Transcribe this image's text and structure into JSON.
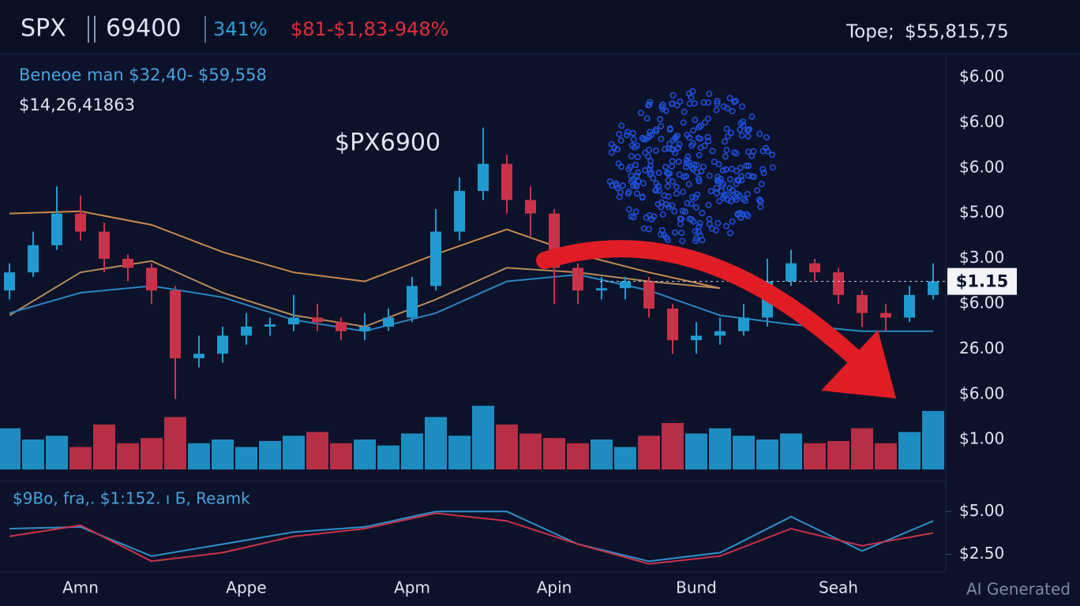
{
  "header": {
    "symbol": "SPX",
    "price": "69400",
    "change": "341%",
    "range": "$81-$1,83-948%",
    "top_label": "Tope;",
    "top_value": "$55,815,75"
  },
  "info": {
    "line1": "Beneoe man $32,40- $59,558",
    "line2": "$14,26,41863"
  },
  "y_axis_labels": [
    "$6.00",
    "$6.00",
    "$6.00",
    "$5.00",
    "$3.00",
    "$6.00",
    "26.00",
    "$6.00",
    "$1.00"
  ],
  "chart_data": {
    "type": "candlestick",
    "annotation": "$PX6900",
    "categories": [
      null,
      null,
      null,
      "Amn",
      null,
      null,
      null,
      null,
      null,
      null,
      "Appe",
      null,
      null,
      null,
      null,
      null,
      null,
      "Apm",
      null,
      null,
      null,
      null,
      null,
      "Apin",
      null,
      null,
      null,
      null,
      null,
      "Bund",
      null,
      null,
      null,
      null,
      null,
      "Seah",
      null,
      null,
      null,
      null
    ],
    "open": [
      3.3,
      3.7,
      4.3,
      5.0,
      4.6,
      4.0,
      3.8,
      3.3,
      1.8,
      1.9,
      2.3,
      2.5,
      2.55,
      2.7,
      2.6,
      2.4,
      2.5,
      2.7,
      3.4,
      4.6,
      5.5,
      6.1,
      5.3,
      5.0,
      3.8,
      3.3,
      3.35,
      3.5,
      2.9,
      2.2,
      2.3,
      2.4,
      2.7,
      3.5,
      3.9,
      3.7,
      3.2,
      2.8,
      2.7,
      3.2
    ],
    "high": [
      3.9,
      4.6,
      5.6,
      5.4,
      4.8,
      4.1,
      3.9,
      3.4,
      2.3,
      2.5,
      2.8,
      2.7,
      3.2,
      3.0,
      2.7,
      2.8,
      2.9,
      3.6,
      5.1,
      5.8,
      6.9,
      6.3,
      5.6,
      5.1,
      3.9,
      3.6,
      3.6,
      3.6,
      3.0,
      2.6,
      2.7,
      3.0,
      4.0,
      4.2,
      4.0,
      3.8,
      3.3,
      3.0,
      3.4,
      3.9
    ],
    "low": [
      3.1,
      3.6,
      4.2,
      4.4,
      3.7,
      3.5,
      3.0,
      0.9,
      1.6,
      1.7,
      2.1,
      2.3,
      2.4,
      2.4,
      2.2,
      2.2,
      2.4,
      2.6,
      3.3,
      4.4,
      5.3,
      5.0,
      4.5,
      3.0,
      3.0,
      3.1,
      3.1,
      2.7,
      1.9,
      1.9,
      2.1,
      2.3,
      2.5,
      3.4,
      3.5,
      3.0,
      2.5,
      2.4,
      2.6,
      3.1
    ],
    "close": [
      3.7,
      4.3,
      5.0,
      4.6,
      4.0,
      3.8,
      3.3,
      1.8,
      1.9,
      2.3,
      2.5,
      2.55,
      2.7,
      2.6,
      2.4,
      2.5,
      2.7,
      3.4,
      4.6,
      5.5,
      6.1,
      5.3,
      5.0,
      3.8,
      3.3,
      3.35,
      3.5,
      2.9,
      2.2,
      2.3,
      2.4,
      2.7,
      3.5,
      3.9,
      3.7,
      3.2,
      2.8,
      2.7,
      3.2,
      3.5
    ],
    "up_color": "#1f9bd1",
    "down_color": "#c9334a",
    "ylim": [
      0.65,
      8.5
    ],
    "moving_averages": {
      "x": [
        0,
        3,
        6,
        9,
        12,
        15,
        18,
        21,
        24,
        27,
        30,
        33,
        36,
        39
      ],
      "series": [
        {
          "color": "#c98a4e",
          "values": [
            5.0,
            5.05,
            4.75,
            4.15,
            3.7,
            3.5,
            4.1,
            4.65,
            4.1,
            3.7,
            3.35,
            null,
            null,
            null
          ]
        },
        {
          "color": "#b88a5a",
          "values": [
            2.75,
            3.7,
            3.95,
            3.25,
            2.75,
            2.5,
            3.1,
            3.8,
            3.7,
            3.5,
            3.35,
            null,
            null,
            null
          ]
        },
        {
          "color": "#2a86c0",
          "values": [
            2.8,
            3.25,
            3.4,
            3.15,
            2.65,
            2.4,
            2.8,
            3.5,
            3.65,
            3.3,
            2.75,
            2.55,
            2.4,
            2.4
          ]
        }
      ]
    },
    "volume": {
      "values": [
        55,
        40,
        45,
        30,
        60,
        35,
        42,
        70,
        35,
        40,
        30,
        38,
        45,
        50,
        35,
        40,
        32,
        48,
        70,
        45,
        85,
        60,
        48,
        42,
        35,
        40,
        30,
        45,
        62,
        48,
        55,
        45,
        40,
        48,
        35,
        38,
        55,
        35,
        50,
        78
      ],
      "ylim": [
        0,
        100
      ]
    },
    "last_price_label": "$1.15",
    "oscillator": {
      "type": "line",
      "label": "$9Bo, fra,.  $1:152. ı Б, Reamk",
      "x": [
        0,
        3,
        6,
        9,
        12,
        15,
        18,
        21,
        24,
        27,
        30,
        33,
        36,
        39
      ],
      "series": [
        {
          "color": "#2f8fc9",
          "values": [
            4.0,
            4.1,
            2.4,
            3.1,
            3.8,
            4.1,
            5.0,
            5.0,
            3.1,
            2.1,
            2.6,
            4.7,
            2.7,
            4.45
          ]
        },
        {
          "color": "#c9334a",
          "values": [
            3.55,
            4.2,
            2.1,
            2.6,
            3.55,
            4.0,
            4.9,
            4.45,
            3.1,
            1.95,
            2.4,
            4.0,
            3.0,
            3.75
          ]
        }
      ],
      "ylim": [
        1.7,
        6.3
      ],
      "yticks": [
        {
          "value": 5,
          "label": "$5.00"
        },
        {
          "value": 2.5,
          "label": "$2.50"
        }
      ]
    }
  },
  "watermark": "AI Generated"
}
